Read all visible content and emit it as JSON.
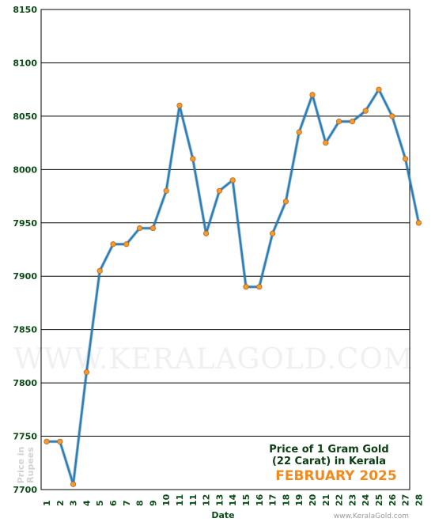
{
  "chart_data": {
    "type": "line",
    "title": [
      "Price of 1 Gram Gold",
      "(22 Carat) in Kerala"
    ],
    "subtitle": "FEBRUARY 2025",
    "xlabel": "Date",
    "ylabel": "Price in Rupees",
    "watermark": "WWW.KERALAGOLD.COM",
    "site": "www.KeralaGold.com",
    "ylim": [
      7700,
      8150
    ],
    "yticks": [
      7700,
      7750,
      7800,
      7850,
      7900,
      7950,
      8000,
      8050,
      8100,
      8150
    ],
    "grid": true,
    "colors": {
      "line": "#2a7fb8",
      "marker": "#f59a2f",
      "grid": "#000000",
      "text": "#0b4b15",
      "accent": "#f08a1c"
    },
    "x": [
      "1",
      "2",
      "3",
      "4",
      "5",
      "6",
      "7",
      "8",
      "9",
      "10",
      "11",
      "11",
      "12",
      "13",
      "14",
      "15",
      "16",
      "17",
      "18",
      "19",
      "20",
      "21",
      "22",
      "23",
      "24",
      "25",
      "26",
      "27",
      "28"
    ],
    "values": [
      7745,
      7745,
      7705,
      7810,
      7905,
      7930,
      7930,
      7945,
      7945,
      7980,
      8060,
      8010,
      7940,
      7980,
      7990,
      7890,
      7890,
      7940,
      7970,
      8035,
      8070,
      8025,
      8045,
      8045,
      8055,
      8075,
      8050,
      8010,
      7950
    ]
  }
}
